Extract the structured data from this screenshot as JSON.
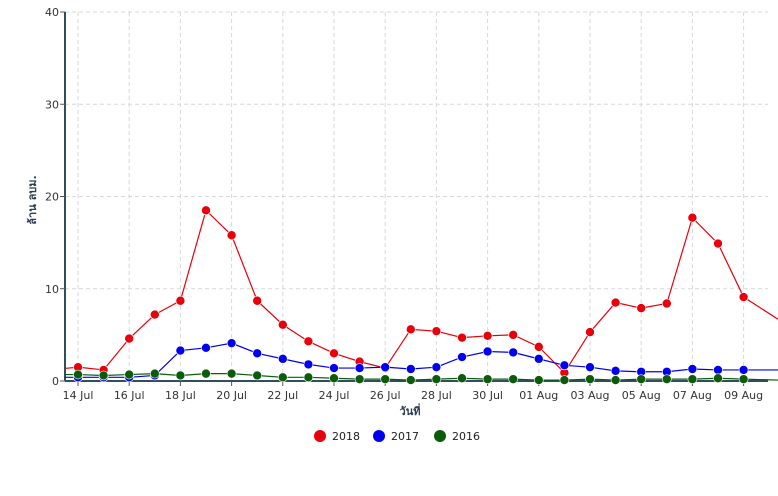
{
  "chart_data": {
    "type": "line",
    "xlabel": "วันที่",
    "ylabel": "ล้าน ลบม.",
    "ylim": [
      0,
      40
    ],
    "yticks": [
      "0",
      "10",
      "20",
      "30",
      "40"
    ],
    "xtick_labels": [
      "14 Jul",
      "16 Jul",
      "18 Jul",
      "20 Jul",
      "22 Jul",
      "24 Jul",
      "26 Jul",
      "28 Jul",
      "30 Jul",
      "01 Aug",
      "03 Aug",
      "05 Aug",
      "07 Aug",
      "09 Aug"
    ],
    "grid": true,
    "legend_position": "bottom-center",
    "x": [
      "13 Jul",
      "14 Jul",
      "15 Jul",
      "16 Jul",
      "17 Jul",
      "18 Jul",
      "19 Jul",
      "20 Jul",
      "21 Jul",
      "22 Jul",
      "23 Jul",
      "24 Jul",
      "25 Jul",
      "26 Jul",
      "27 Jul",
      "28 Jul",
      "29 Jul",
      "30 Jul",
      "31 Jul",
      "01 Aug",
      "02 Aug",
      "03 Aug",
      "04 Aug",
      "05 Aug",
      "06 Aug",
      "07 Aug",
      "08 Aug",
      "09 Aug",
      "10 Aug"
    ],
    "series": [
      {
        "name": "2018",
        "color": "#e8000b",
        "values": [
          1.2,
          1.5,
          1.2,
          4.6,
          7.2,
          8.7,
          18.5,
          15.8,
          8.7,
          6.1,
          4.3,
          3.0,
          2.1,
          1.4,
          5.6,
          5.4,
          4.7,
          4.9,
          5.0,
          3.7,
          0.9,
          5.3,
          8.5,
          7.9,
          8.4,
          17.7,
          14.9,
          9.1,
          6.7
        ],
        "markers": [
          false,
          true,
          true,
          true,
          true,
          true,
          true,
          true,
          true,
          true,
          true,
          true,
          true,
          true,
          true,
          true,
          true,
          true,
          true,
          true,
          true,
          true,
          true,
          true,
          true,
          true,
          true,
          true,
          false
        ]
      },
      {
        "name": "2017",
        "color": "#0000ee",
        "values": [
          0.4,
          0.4,
          0.4,
          0.4,
          0.6,
          3.3,
          3.6,
          4.1,
          3.0,
          2.4,
          1.8,
          1.4,
          1.4,
          1.5,
          1.3,
          1.5,
          2.6,
          3.2,
          3.1,
          2.4,
          1.7,
          1.5,
          1.1,
          1.0,
          1.0,
          1.3,
          1.2,
          1.2,
          1.2
        ],
        "markers": [
          false,
          true,
          true,
          true,
          true,
          true,
          true,
          true,
          true,
          true,
          true,
          true,
          true,
          true,
          true,
          true,
          true,
          true,
          true,
          true,
          true,
          true,
          true,
          true,
          true,
          true,
          true,
          true,
          false
        ]
      },
      {
        "name": "2016",
        "color": "#0b5b0b",
        "values": [
          0.7,
          0.7,
          0.6,
          0.7,
          0.8,
          0.6,
          0.8,
          0.8,
          0.6,
          0.4,
          0.4,
          0.3,
          0.2,
          0.2,
          0.1,
          0.2,
          0.3,
          0.2,
          0.2,
          0.1,
          0.1,
          0.2,
          0.1,
          0.2,
          0.2,
          0.2,
          0.3,
          0.2,
          0.1
        ],
        "markers": [
          false,
          true,
          true,
          true,
          true,
          true,
          true,
          true,
          true,
          true,
          true,
          true,
          true,
          true,
          true,
          true,
          true,
          true,
          true,
          true,
          true,
          true,
          true,
          true,
          true,
          true,
          true,
          true,
          false
        ]
      }
    ]
  }
}
